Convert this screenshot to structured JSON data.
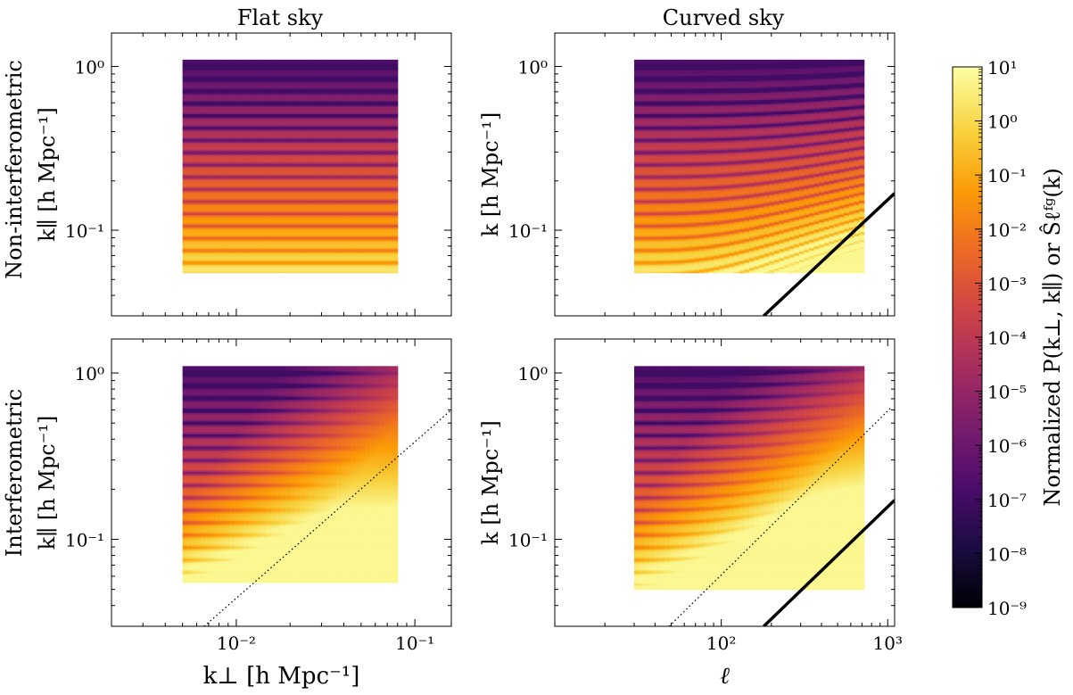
{
  "chart_data": {
    "type": "heatmap",
    "column_titles": [
      "Flat sky",
      "Curved sky"
    ],
    "row_labels": [
      "Non-interferometric",
      "Interferometric"
    ],
    "panels": [
      {
        "id": "flat-noninterferometric",
        "xlabel": "k⊥  [h Mpc⁻¹]",
        "ylabel": "k∥  [h Mpc⁻¹]",
        "xscale": "log",
        "yscale": "log",
        "xlim": [
          0.002,
          0.16
        ],
        "ylim": [
          0.03,
          1.6
        ],
        "data_x_range": [
          0.005,
          0.08
        ],
        "data_y_range": [
          0.055,
          1.1
        ],
        "wedge": "none",
        "boundary_line": "none",
        "yticks": [
          "10⁰",
          "10⁻¹"
        ],
        "xticks": [
          "10⁻²",
          "10⁻¹"
        ]
      },
      {
        "id": "curved-noninterferometric",
        "xlabel": "ℓ",
        "ylabel": "k [h Mpc⁻¹]",
        "xscale": "log",
        "yscale": "log",
        "xlim": [
          10,
          1100
        ],
        "ylim": [
          0.03,
          1.6
        ],
        "data_x_range": [
          30,
          720
        ],
        "data_y_range": [
          0.055,
          1.1
        ],
        "wedge": "none",
        "boundary_line": "k ∝ ℓ (solid)",
        "yticks": [
          "10⁰",
          "10⁻¹"
        ],
        "xticks": [
          "10²",
          "10³"
        ]
      },
      {
        "id": "flat-interferometric",
        "xlabel": "k⊥  [h Mpc⁻¹]",
        "ylabel": "k∥  [h Mpc⁻¹]",
        "xscale": "log",
        "yscale": "log",
        "xlim": [
          0.002,
          0.16
        ],
        "ylim": [
          0.03,
          1.6
        ],
        "data_x_range": [
          0.005,
          0.08
        ],
        "data_y_range": [
          0.055,
          1.1
        ],
        "wedge": "horizon line (dotted)",
        "boundary_line": "none",
        "yticks": [
          "10⁰",
          "10⁻¹"
        ],
        "xticks": [
          "10⁻²",
          "10⁻¹"
        ]
      },
      {
        "id": "curved-interferometric",
        "xlabel": "ℓ",
        "ylabel": "k [h Mpc⁻¹]",
        "xscale": "log",
        "yscale": "log",
        "xlim": [
          10,
          1100
        ],
        "ylim": [
          0.03,
          1.6
        ],
        "data_x_range": [
          30,
          720
        ],
        "data_y_range": [
          0.05,
          1.1
        ],
        "wedge": "horizon line (dotted)",
        "boundary_line": "k ∝ ℓ (solid)",
        "yticks": [
          "10⁰",
          "10⁻¹"
        ],
        "xticks": [
          "10²",
          "10³"
        ]
      }
    ],
    "colorbar": {
      "colormap": "inferno",
      "scale": "log",
      "range": [
        1e-09,
        10
      ],
      "ticks": [
        "10¹",
        "10⁰",
        "10⁻¹",
        "10⁻²",
        "10⁻³",
        "10⁻⁴",
        "10⁻⁵",
        "10⁻⁶",
        "10⁻⁷",
        "10⁻⁸",
        "10⁻⁹"
      ],
      "label": "Normalized P(k⊥, k∥) or Ŝℓᶠᵍ(k)"
    },
    "colors": {
      "inferno_stops": [
        "#000004",
        "#1b0c41",
        "#4a0c6b",
        "#781c6d",
        "#a52c60",
        "#cf4446",
        "#ed6925",
        "#fb9b06",
        "#f7d13d",
        "#fcffa4"
      ],
      "line": "#000000"
    }
  }
}
